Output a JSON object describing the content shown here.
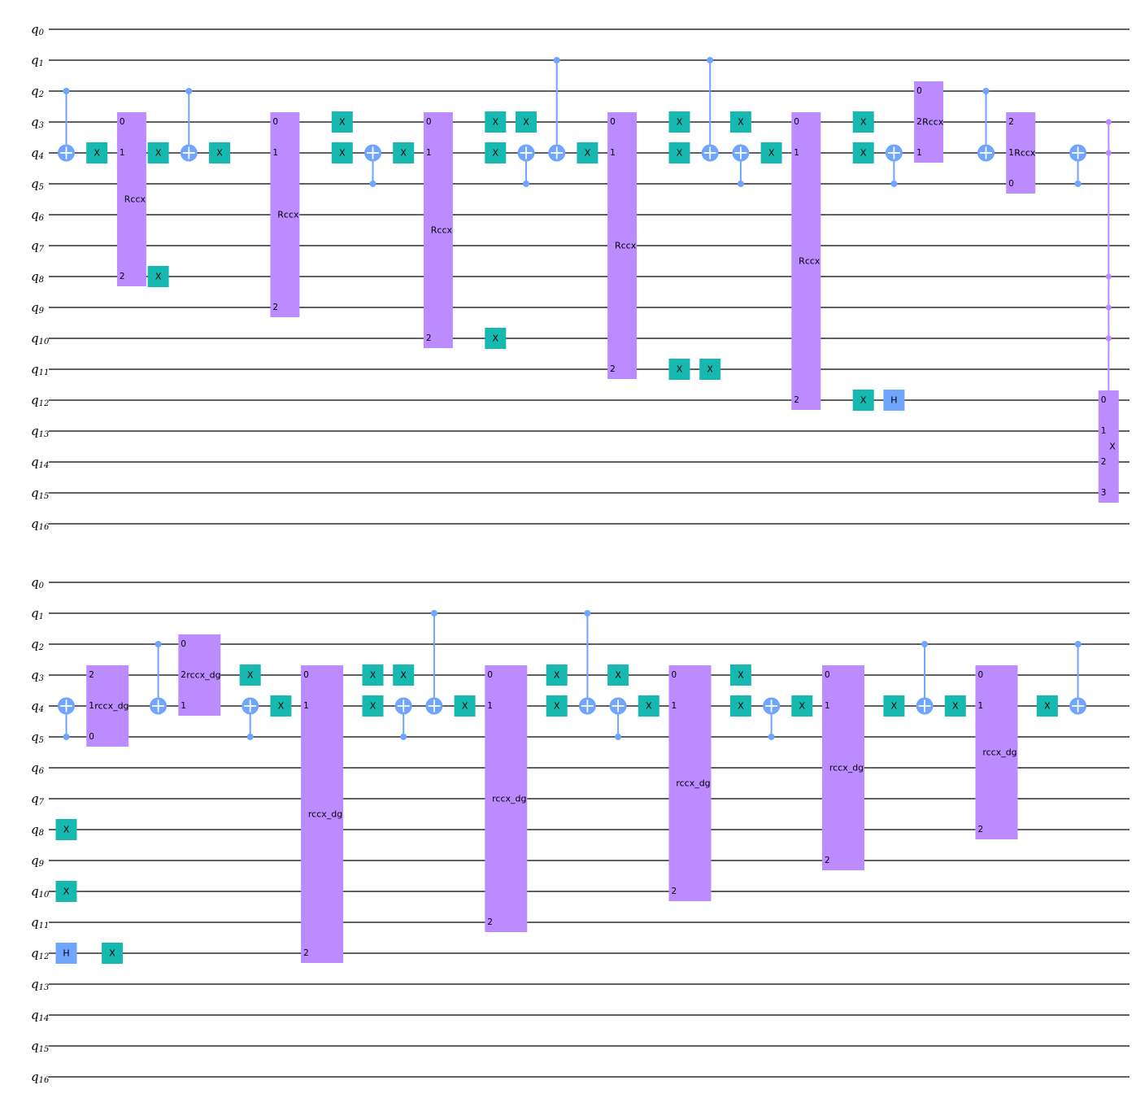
{
  "colors": {
    "x_gate": "#17b8b0",
    "h_gate": "#6fa4ff",
    "cnot": "#6fa4ff",
    "multi_gate": "#bb8bff",
    "wire": "#000000"
  },
  "qubits": [
    "q0",
    "q1",
    "q2",
    "q3",
    "q4",
    "q5",
    "q6",
    "q7",
    "q8",
    "q9",
    "q10",
    "q11",
    "q12",
    "q13",
    "q14",
    "q15",
    "q16"
  ],
  "labels": {
    "x": "X",
    "h": "H",
    "rccx": "Rccx",
    "rccx_dg": "rccx_dg",
    "mcx": "X"
  },
  "circuit_rows": [
    {
      "columns": [
        {
          "col": 0,
          "gates": [
            {
              "type": "cx",
              "control": 2,
              "target": 4
            }
          ]
        },
        {
          "col": 1,
          "gates": [
            {
              "type": "x",
              "q": 4
            }
          ]
        },
        {
          "col": 2,
          "gates": [
            {
              "type": "box",
              "label": "Rccx",
              "ports": [
                [
                  3,
                  "0"
                ],
                [
                  4,
                  "1"
                ],
                [
                  8,
                  "2"
                ]
              ]
            }
          ]
        },
        {
          "col": 3,
          "gates": [
            {
              "type": "x",
              "q": 4
            },
            {
              "type": "x",
              "q": 8
            }
          ]
        },
        {
          "col": 4,
          "gates": [
            {
              "type": "cx",
              "control": 2,
              "target": 4
            }
          ]
        },
        {
          "col": 5,
          "gates": [
            {
              "type": "x",
              "q": 4
            }
          ]
        },
        {
          "col": 7,
          "gates": [
            {
              "type": "box",
              "label": "Rccx",
              "ports": [
                [
                  3,
                  "0"
                ],
                [
                  4,
                  "1"
                ],
                [
                  9,
                  "2"
                ]
              ]
            }
          ]
        },
        {
          "col": 9,
          "gates": [
            {
              "type": "x",
              "q": 3
            },
            {
              "type": "x",
              "q": 4
            }
          ]
        },
        {
          "col": 10,
          "gates": [
            {
              "type": "cx",
              "control": 5,
              "target": 4
            }
          ]
        },
        {
          "col": 11,
          "gates": [
            {
              "type": "x",
              "q": 4
            }
          ]
        },
        {
          "col": 12,
          "gates": [
            {
              "type": "box",
              "label": "Rccx",
              "ports": [
                [
                  3,
                  "0"
                ],
                [
                  4,
                  "1"
                ],
                [
                  10,
                  "2"
                ]
              ]
            }
          ]
        },
        {
          "col": 14,
          "gates": [
            {
              "type": "x",
              "q": 3
            },
            {
              "type": "x",
              "q": 4
            },
            {
              "type": "x",
              "q": 10
            }
          ]
        },
        {
          "col": 15,
          "gates": [
            {
              "type": "x",
              "q": 3
            },
            {
              "type": "cx",
              "control": 5,
              "target": 4
            }
          ]
        },
        {
          "col": 16,
          "gates": [
            {
              "type": "cx",
              "control": 1,
              "target": 4
            }
          ]
        },
        {
          "col": 17,
          "gates": [
            {
              "type": "x",
              "q": 4
            }
          ]
        },
        {
          "col": 18,
          "gates": [
            {
              "type": "box",
              "label": "Rccx",
              "ports": [
                [
                  3,
                  "0"
                ],
                [
                  4,
                  "1"
                ],
                [
                  11,
                  "2"
                ]
              ]
            }
          ]
        },
        {
          "col": 20,
          "gates": [
            {
              "type": "x",
              "q": 3
            },
            {
              "type": "x",
              "q": 4
            },
            {
              "type": "x",
              "q": 11
            }
          ]
        },
        {
          "col": 21,
          "gates": [
            {
              "type": "cx",
              "control": 1,
              "target": 4
            },
            {
              "type": "x",
              "q": 11
            }
          ]
        },
        {
          "col": 22,
          "gates": [
            {
              "type": "x",
              "q": 3
            },
            {
              "type": "cx",
              "control": 5,
              "target": 4
            }
          ]
        },
        {
          "col": 23,
          "gates": [
            {
              "type": "x",
              "q": 4
            }
          ]
        },
        {
          "col": 24,
          "gates": [
            {
              "type": "box",
              "label": "Rccx",
              "ports": [
                [
                  3,
                  "0"
                ],
                [
                  4,
                  "1"
                ],
                [
                  12,
                  "2"
                ]
              ]
            }
          ]
        },
        {
          "col": 26,
          "gates": [
            {
              "type": "x",
              "q": 3
            },
            {
              "type": "x",
              "q": 4
            },
            {
              "type": "x",
              "q": 12
            }
          ]
        },
        {
          "col": 27,
          "gates": [
            {
              "type": "cx",
              "control": 5,
              "target": 4
            },
            {
              "type": "h",
              "q": 12
            }
          ]
        },
        {
          "col": 28,
          "gates": [
            {
              "type": "box",
              "label": "Rccx",
              "ports": [
                [
                  2,
                  "0"
                ],
                [
                  3,
                  "2"
                ],
                [
                  4,
                  "1"
                ]
              ]
            }
          ]
        },
        {
          "col": 30,
          "gates": [
            {
              "type": "cx",
              "control": 2,
              "target": 4
            }
          ]
        },
        {
          "col": 31,
          "gates": [
            {
              "type": "box",
              "label": "Rccx",
              "ports": [
                [
                  3,
                  "2"
                ],
                [
                  4,
                  "1"
                ],
                [
                  5,
                  "0"
                ]
              ]
            }
          ]
        },
        {
          "col": 33,
          "gates": [
            {
              "type": "cx",
              "control": 5,
              "target": 4
            }
          ]
        },
        {
          "col": 34,
          "gates": [
            {
              "type": "mcx",
              "label": "X",
              "controls": [
                3,
                4,
                8,
                9,
                10
              ],
              "ports": [
                [
                  12,
                  "0"
                ],
                [
                  13,
                  "1"
                ],
                [
                  14,
                  "2"
                ],
                [
                  15,
                  "3"
                ]
              ]
            }
          ]
        }
      ]
    },
    {
      "columns": [
        {
          "col": 0,
          "gates": [
            {
              "type": "cx",
              "control": 5,
              "target": 4
            },
            {
              "type": "x",
              "q": 8
            },
            {
              "type": "x",
              "q": 10
            },
            {
              "type": "h",
              "q": 12
            }
          ]
        },
        {
          "col": 1,
          "gates": [
            {
              "type": "box",
              "label": "rccx_dg",
              "ports": [
                [
                  3,
                  "2"
                ],
                [
                  4,
                  "1"
                ],
                [
                  5,
                  "0"
                ]
              ]
            }
          ]
        },
        {
          "col": 1.5,
          "gates": [
            {
              "type": "x",
              "q": 12
            }
          ]
        },
        {
          "col": 3,
          "gates": [
            {
              "type": "cx",
              "control": 2,
              "target": 4
            }
          ]
        },
        {
          "col": 4,
          "gates": [
            {
              "type": "box",
              "label": "rccx_dg",
              "ports": [
                [
                  2,
                  "0"
                ],
                [
                  3,
                  "2"
                ],
                [
                  4,
                  "1"
                ]
              ]
            }
          ]
        },
        {
          "col": 6,
          "gates": [
            {
              "type": "x",
              "q": 3
            },
            {
              "type": "cx",
              "control": 5,
              "target": 4
            }
          ]
        },
        {
          "col": 7,
          "gates": [
            {
              "type": "x",
              "q": 4
            }
          ]
        },
        {
          "col": 8,
          "gates": [
            {
              "type": "box",
              "label": "rccx_dg",
              "ports": [
                [
                  3,
                  "0"
                ],
                [
                  4,
                  "1"
                ],
                [
                  12,
                  "2"
                ]
              ]
            }
          ]
        },
        {
          "col": 10,
          "gates": [
            {
              "type": "x",
              "q": 3
            },
            {
              "type": "x",
              "q": 4
            }
          ]
        },
        {
          "col": 11,
          "gates": [
            {
              "type": "x",
              "q": 3
            },
            {
              "type": "cx",
              "control": 5,
              "target": 4
            }
          ]
        },
        {
          "col": 12,
          "gates": [
            {
              "type": "cx",
              "control": 1,
              "target": 4
            }
          ]
        },
        {
          "col": 13,
          "gates": [
            {
              "type": "x",
              "q": 4
            }
          ]
        },
        {
          "col": 14,
          "gates": [
            {
              "type": "box",
              "label": "rccx_dg",
              "ports": [
                [
                  3,
                  "0"
                ],
                [
                  4,
                  "1"
                ],
                [
                  11,
                  "2"
                ]
              ]
            }
          ]
        },
        {
          "col": 16,
          "gates": [
            {
              "type": "x",
              "q": 3
            },
            {
              "type": "x",
              "q": 4
            }
          ]
        },
        {
          "col": 17,
          "gates": [
            {
              "type": "cx",
              "control": 1,
              "target": 4
            }
          ]
        },
        {
          "col": 18,
          "gates": [
            {
              "type": "x",
              "q": 3
            },
            {
              "type": "cx",
              "control": 5,
              "target": 4
            }
          ]
        },
        {
          "col": 19,
          "gates": [
            {
              "type": "x",
              "q": 4
            }
          ]
        },
        {
          "col": 20,
          "gates": [
            {
              "type": "box",
              "label": "rccx_dg",
              "ports": [
                [
                  3,
                  "0"
                ],
                [
                  4,
                  "1"
                ],
                [
                  10,
                  "2"
                ]
              ]
            }
          ]
        },
        {
          "col": 22,
          "gates": [
            {
              "type": "x",
              "q": 3
            },
            {
              "type": "x",
              "q": 4
            }
          ]
        },
        {
          "col": 23,
          "gates": [
            {
              "type": "cx",
              "control": 5,
              "target": 4
            }
          ]
        },
        {
          "col": 24,
          "gates": [
            {
              "type": "x",
              "q": 4
            }
          ]
        },
        {
          "col": 25,
          "gates": [
            {
              "type": "box",
              "label": "rccx_dg",
              "ports": [
                [
                  3,
                  "0"
                ],
                [
                  4,
                  "1"
                ],
                [
                  9,
                  "2"
                ]
              ]
            }
          ]
        },
        {
          "col": 27,
          "gates": [
            {
              "type": "x",
              "q": 4
            }
          ]
        },
        {
          "col": 28,
          "gates": [
            {
              "type": "cx",
              "control": 2,
              "target": 4
            }
          ]
        },
        {
          "col": 29,
          "gates": [
            {
              "type": "x",
              "q": 4
            }
          ]
        },
        {
          "col": 30,
          "gates": [
            {
              "type": "box",
              "label": "rccx_dg",
              "ports": [
                [
                  3,
                  "0"
                ],
                [
                  4,
                  "1"
                ],
                [
                  8,
                  "2"
                ]
              ]
            }
          ]
        },
        {
          "col": 32,
          "gates": [
            {
              "type": "x",
              "q": 4
            }
          ]
        },
        {
          "col": 33,
          "gates": [
            {
              "type": "cx",
              "control": 2,
              "target": 4
            }
          ]
        }
      ]
    }
  ]
}
